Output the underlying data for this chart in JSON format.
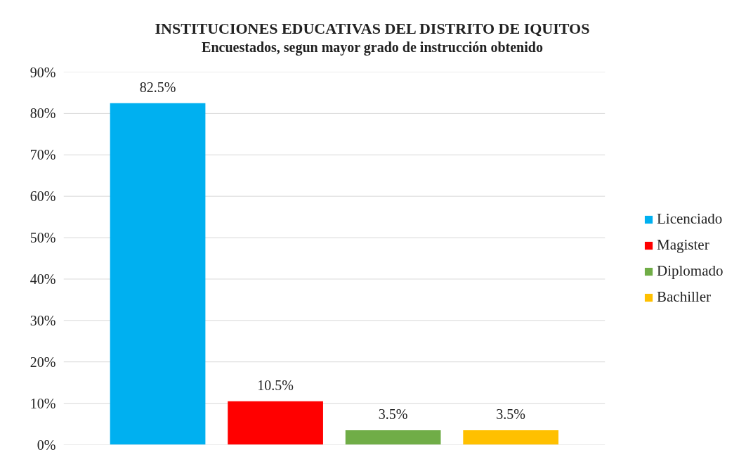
{
  "chart_data": {
    "type": "bar",
    "title": "INSTITUCIONES EDUCATIVAS DEL DISTRITO DE IQUITOS",
    "subtitle": "Encuestados, segun mayor grado de instrucción obtenido",
    "categories": [
      null,
      null,
      null,
      null
    ],
    "series": [
      {
        "name": "Licenciado",
        "color": "#00b0f0",
        "values": [
          82.5,
          null,
          null,
          null
        ],
        "value_labels": [
          "82.5%",
          null,
          null,
          null
        ]
      },
      {
        "name": "Magister",
        "color": "#ff0000",
        "values": [
          null,
          10.5,
          null,
          null
        ],
        "value_labels": [
          null,
          "10.5%",
          null,
          null
        ]
      },
      {
        "name": "Diplomado",
        "color": "#70ad47",
        "values": [
          null,
          null,
          3.5,
          null
        ],
        "value_labels": [
          null,
          null,
          "3.5%",
          null
        ]
      },
      {
        "name": "Bachiller",
        "color": "#ffc000",
        "values": [
          null,
          null,
          null,
          3.5
        ],
        "value_labels": [
          null,
          null,
          null,
          "3.5%"
        ]
      }
    ],
    "ylim": [
      0,
      90
    ],
    "yticks": [
      {
        "value": 0,
        "label": "0%"
      },
      {
        "value": 10,
        "label": "10%"
      },
      {
        "value": 20,
        "label": "20%"
      },
      {
        "value": 30,
        "label": "30%"
      },
      {
        "value": 40,
        "label": "40%"
      },
      {
        "value": 50,
        "label": "50%"
      },
      {
        "value": 60,
        "label": "60%"
      },
      {
        "value": 70,
        "label": "70%"
      },
      {
        "value": 80,
        "label": "80%"
      },
      {
        "value": 90,
        "label": "90%"
      }
    ],
    "grid": "y",
    "legend": "right",
    "tick_labels": "y"
  }
}
